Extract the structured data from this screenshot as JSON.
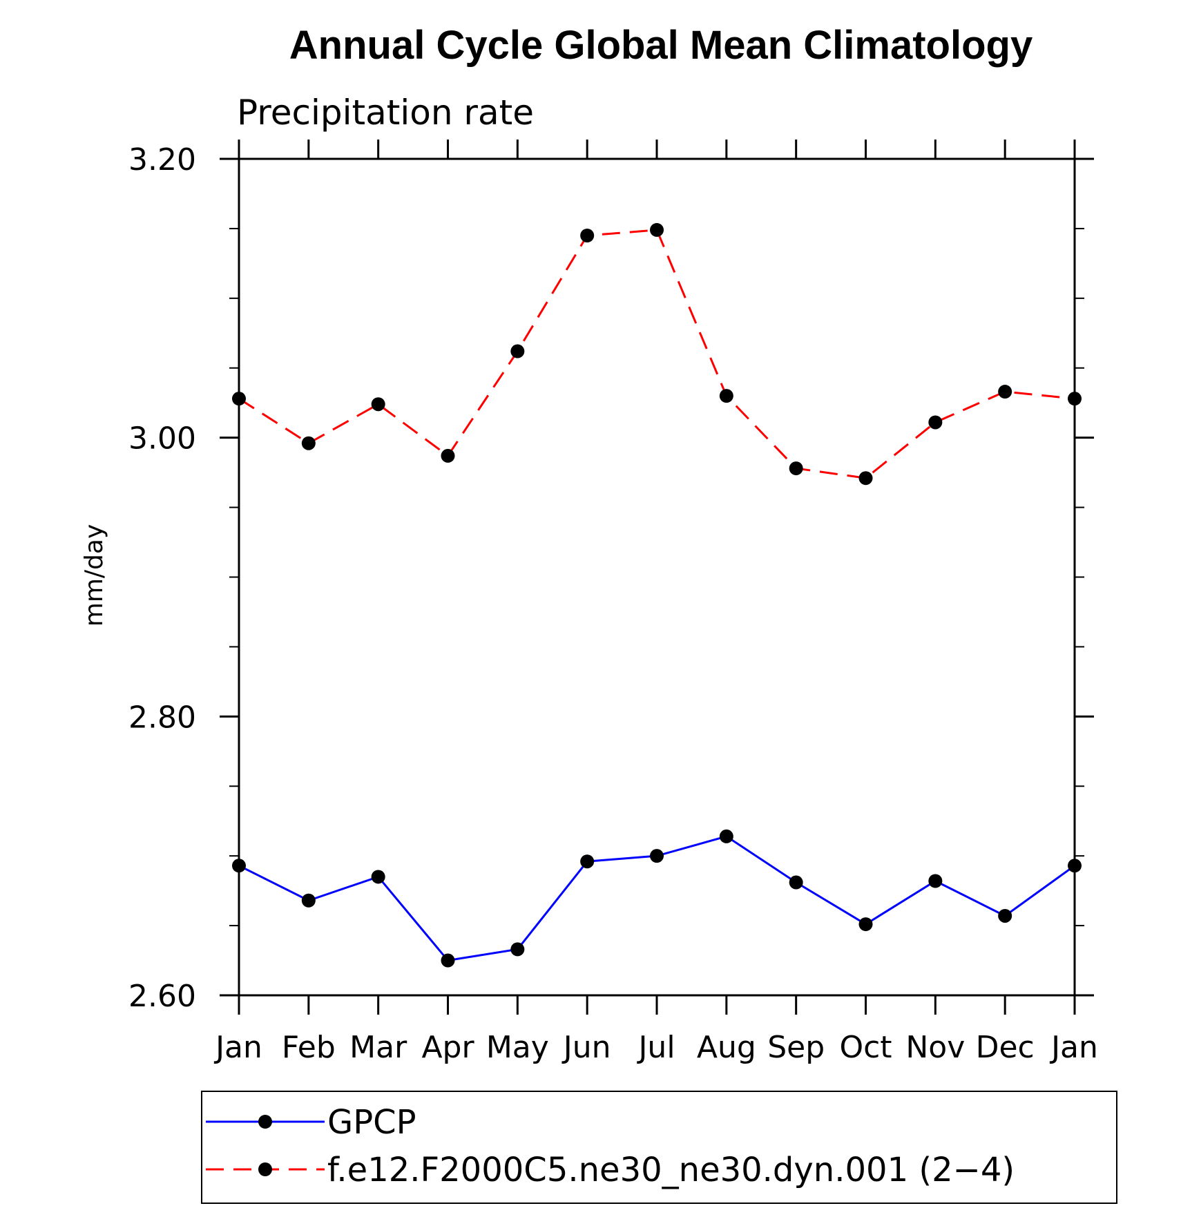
{
  "chart_data": {
    "type": "line",
    "title": "Annual Cycle Global Mean Climatology",
    "subtitle": "Precipitation rate",
    "xlabel": "",
    "ylabel": "mm/day",
    "categories": [
      "Jan",
      "Feb",
      "Mar",
      "Apr",
      "May",
      "Jun",
      "Jul",
      "Aug",
      "Sep",
      "Oct",
      "Nov",
      "Dec",
      "Jan"
    ],
    "ylim": [
      2.6,
      3.2
    ],
    "yticks": [
      "3.20",
      "3.00",
      "2.80",
      "2.60"
    ],
    "ytick_values": [
      3.2,
      3.0,
      2.8,
      2.6
    ],
    "y_minor_step": 0.05,
    "grid": false,
    "legend_position": "bottom",
    "series": [
      {
        "name": "GPCP",
        "color": "#0000ff",
        "line_style": "solid",
        "marker": "filled-circle",
        "values": [
          2.693,
          2.668,
          2.685,
          2.625,
          2.633,
          2.696,
          2.7,
          2.714,
          2.681,
          2.651,
          2.682,
          2.657,
          2.693
        ]
      },
      {
        "name": "f.e12.F2000C5.ne30_ne30.dyn.001 (2−4)",
        "color": "#ff0000",
        "line_style": "dashed",
        "marker": "filled-circle",
        "values": [
          3.028,
          2.996,
          3.024,
          2.987,
          3.062,
          3.145,
          3.149,
          3.03,
          2.978,
          2.971,
          3.011,
          3.033,
          3.028
        ]
      }
    ]
  }
}
